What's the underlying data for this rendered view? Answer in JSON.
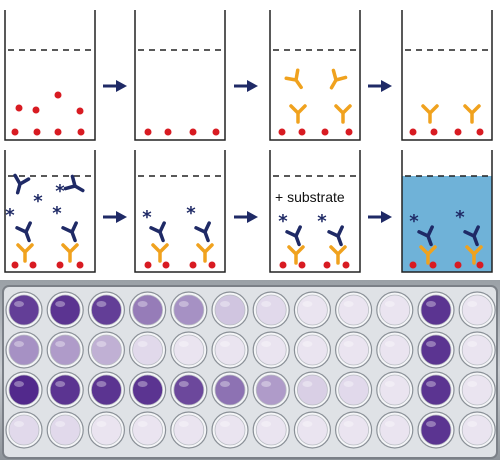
{
  "steps": {
    "substrate_label": "+ substrate"
  },
  "colors": {
    "antigen": "#d81b22",
    "primary_antibody": "#f0a21e",
    "secondary_antibody": "#1f2a66",
    "enzyme": "#1f2a66",
    "arrow": "#1f2a66",
    "well_outline": "#222222",
    "liquid_line": "#222222",
    "colored_product": "#6fb2d8"
  },
  "plate": {
    "rows": 4,
    "columns": 12,
    "wells": [
      [
        0.85,
        0.9,
        0.85,
        0.55,
        0.45,
        0.2,
        0.1,
        0.05,
        0.05,
        0.05,
        0.9,
        0.05
      ],
      [
        0.45,
        0.4,
        0.3,
        0.1,
        0.05,
        0.05,
        0.05,
        0.05,
        0.05,
        0.05,
        0.9,
        0.05
      ],
      [
        0.95,
        0.9,
        0.9,
        0.9,
        0.8,
        0.6,
        0.4,
        0.15,
        0.1,
        0.05,
        0.9,
        0.05
      ],
      [
        0.1,
        0.1,
        0.05,
        0.05,
        0.05,
        0.05,
        0.05,
        0.05,
        0.05,
        0.05,
        0.9,
        0.05
      ]
    ],
    "intensity_color_low": "#f2eef6",
    "intensity_color_high": "#4a1f86"
  }
}
